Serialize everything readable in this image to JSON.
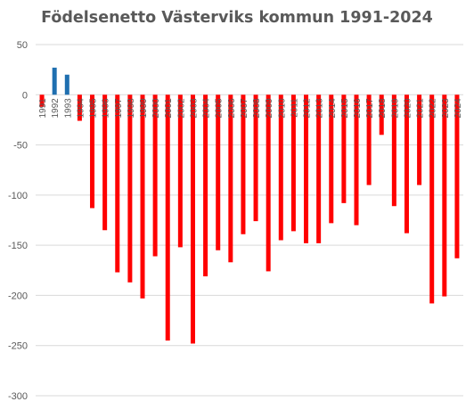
{
  "chart_data": {
    "type": "bar",
    "title": "Födelsenetto Västerviks kommun 1991-2024",
    "xlabel": "",
    "ylabel": "",
    "ylim": [
      -300,
      50
    ],
    "yticks": [
      50,
      0,
      -50,
      -100,
      -150,
      -200,
      -250,
      -300
    ],
    "grid": true,
    "positive_color": "#1f6fb0",
    "negative_color": "#ff0000",
    "categories": [
      "1991",
      "1992",
      "1993",
      "1994",
      "1995",
      "1996",
      "1997",
      "1998",
      "1999",
      "2000",
      "2001",
      "2002",
      "2003",
      "2004",
      "2005",
      "2006",
      "2007",
      "2008",
      "2009",
      "2010",
      "2011",
      "2012",
      "2013",
      "2014",
      "2015",
      "2016",
      "2017",
      "2018",
      "2019",
      "2020",
      "2021",
      "2022",
      "2023",
      "2024"
    ],
    "values": [
      -12,
      27,
      20,
      -26,
      -113,
      -135,
      -177,
      -187,
      -203,
      -161,
      -245,
      -152,
      -248,
      -181,
      -155,
      -167,
      -139,
      -126,
      -176,
      -145,
      -136,
      -148,
      -148,
      -128,
      -108,
      -130,
      -90,
      -40,
      -111,
      -138,
      -90,
      -208,
      -201,
      -163
    ]
  }
}
